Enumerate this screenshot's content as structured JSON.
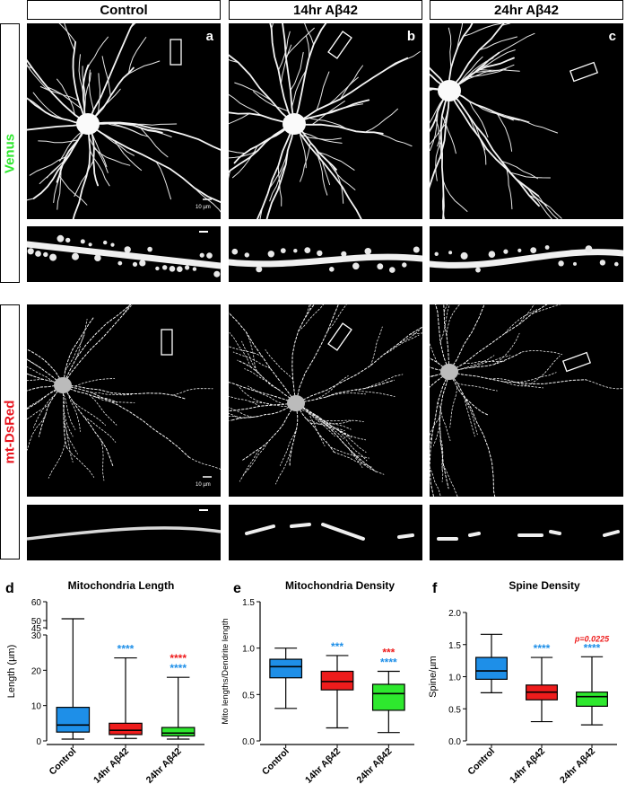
{
  "columns": [
    "Control",
    "14hr Aβ42",
    "24hr Aβ42"
  ],
  "rows": [
    {
      "label": "Venus",
      "color": "#2ee82e"
    },
    {
      "label": "mt-DsRed",
      "color": "#e8141e"
    }
  ],
  "panel_letters": [
    "a",
    "b",
    "c"
  ],
  "scale_label": "10 µm",
  "chart_data": [
    {
      "letter": "d",
      "type": "box",
      "title": "Mitochondria Length",
      "ylabel": "Length (µm)",
      "categories": [
        "Control",
        "14hr Aβ42",
        "24hr Aβ42"
      ],
      "broken_axis": true,
      "yticks_low": [
        "0",
        "10",
        "20",
        "30"
      ],
      "yticks_high": [
        "45",
        "50",
        "60"
      ],
      "boxes": [
        {
          "min": 0.5,
          "q1": 2.5,
          "median": 4.5,
          "q3": 9.5,
          "max": 40,
          "color": "#1e8fe8"
        },
        {
          "min": 0.7,
          "q1": 1.8,
          "median": 3.0,
          "q3": 5.0,
          "max": 23.5,
          "color": "#ee1c1c"
        },
        {
          "min": 0.5,
          "q1": 1.4,
          "median": 2.2,
          "q3": 3.8,
          "max": 18,
          "color": "#2ee82e"
        }
      ],
      "annotations": [
        {
          "category": 1,
          "lines": [
            {
              "text": "****",
              "color": "#1e8fe8"
            }
          ]
        },
        {
          "category": 2,
          "lines": [
            {
              "text": "****",
              "color": "#ee1c1c"
            },
            {
              "text": "****",
              "color": "#1e8fe8"
            }
          ]
        }
      ]
    },
    {
      "letter": "e",
      "type": "box",
      "title": "Mitochondria Density",
      "ylabel": "Mito lengths/Dendrite length",
      "categories": [
        "Control",
        "14hr Aβ42",
        "24hr Aβ42"
      ],
      "ylim": [
        0,
        1.5
      ],
      "yticks": [
        "0.0",
        "0.5",
        "1.0",
        "1.5"
      ],
      "boxes": [
        {
          "min": 0.35,
          "q1": 0.68,
          "median": 0.8,
          "q3": 0.88,
          "max": 1.0,
          "color": "#1e8fe8"
        },
        {
          "min": 0.14,
          "q1": 0.55,
          "median": 0.64,
          "q3": 0.75,
          "max": 0.92,
          "color": "#ee1c1c"
        },
        {
          "min": 0.09,
          "q1": 0.33,
          "median": 0.51,
          "q3": 0.61,
          "max": 0.75,
          "color": "#2ee82e"
        }
      ],
      "annotations": [
        {
          "category": 1,
          "lines": [
            {
              "text": "***",
              "color": "#1e8fe8"
            }
          ]
        },
        {
          "category": 2,
          "lines": [
            {
              "text": "***",
              "color": "#ee1c1c"
            },
            {
              "text": "****",
              "color": "#1e8fe8"
            }
          ]
        }
      ]
    },
    {
      "letter": "f",
      "type": "box",
      "title": "Spine Density",
      "ylabel": "Spine/µm",
      "categories": [
        "Control",
        "14hr Aβ42",
        "24hr Aβ42"
      ],
      "ylim": [
        0,
        2.0
      ],
      "yticks": [
        "0.0",
        "0.5",
        "1.0",
        "1.5",
        "2.0"
      ],
      "boxes": [
        {
          "min": 0.75,
          "q1": 0.96,
          "median": 1.09,
          "q3": 1.3,
          "max": 1.66,
          "color": "#1e8fe8"
        },
        {
          "min": 0.3,
          "q1": 0.64,
          "median": 0.76,
          "q3": 0.87,
          "max": 1.3,
          "color": "#ee1c1c"
        },
        {
          "min": 0.25,
          "q1": 0.54,
          "median": 0.69,
          "q3": 0.76,
          "max": 1.31,
          "color": "#2ee82e"
        }
      ],
      "annotations": [
        {
          "category": 1,
          "lines": [
            {
              "text": "****",
              "color": "#1e8fe8"
            }
          ]
        },
        {
          "category": 2,
          "lines": [
            {
              "text": "p=0.0225",
              "color": "#ee1c1c",
              "italic": true
            },
            {
              "text": "****",
              "color": "#1e8fe8"
            }
          ]
        }
      ]
    }
  ]
}
